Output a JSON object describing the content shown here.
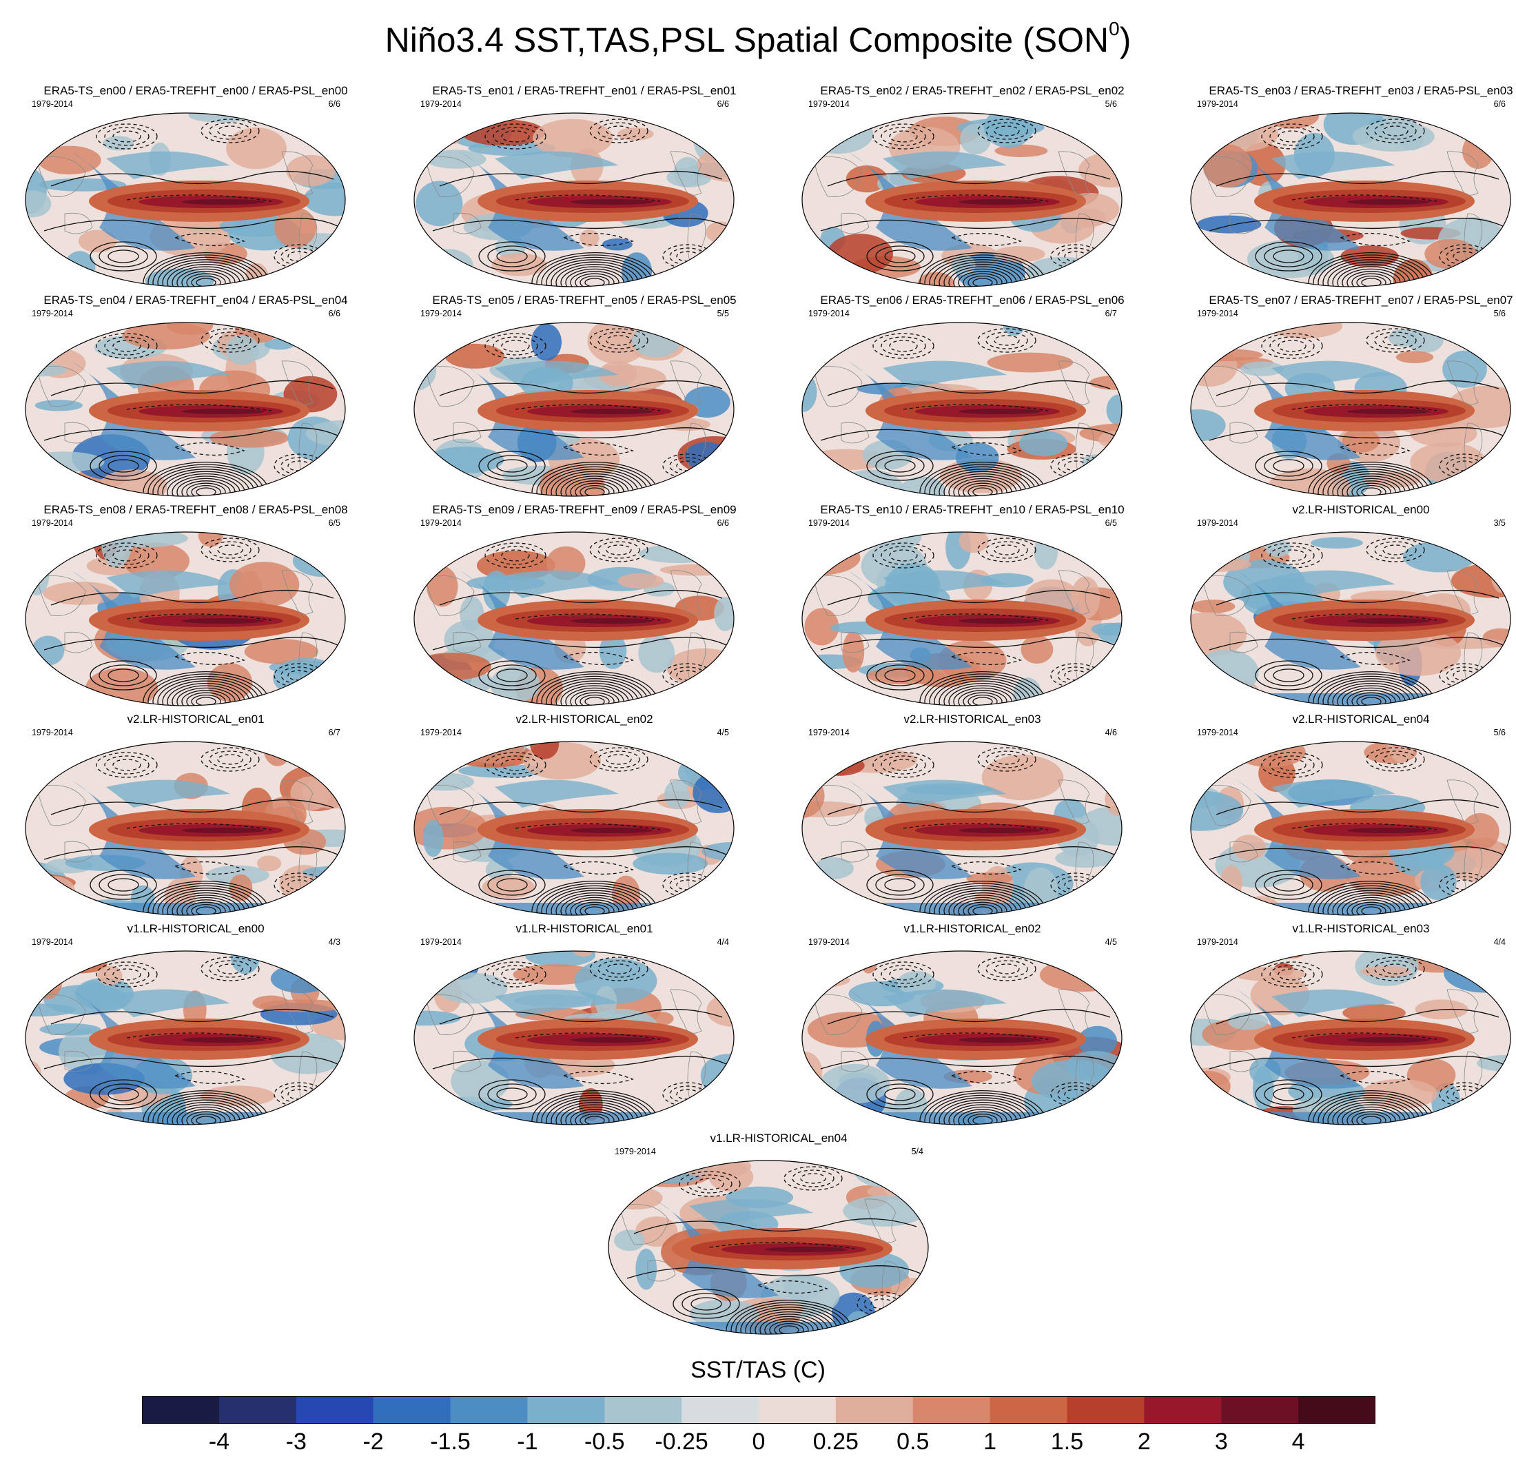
{
  "title": {
    "main": "Niño3.4 SST,TAS,PSL Spatial Composite (SON",
    "sup": "0",
    "close": ")"
  },
  "panels": [
    {
      "title": "ERA5-TS_en00 / ERA5-TREFHT_en00 / ERA5-PSL_en00",
      "years": "1979-2014",
      "count": "6/6",
      "style": "obs"
    },
    {
      "title": "ERA5-TS_en01 / ERA5-TREFHT_en01 / ERA5-PSL_en01",
      "years": "1979-2014",
      "count": "6/6",
      "style": "obs"
    },
    {
      "title": "ERA5-TS_en02 / ERA5-TREFHT_en02 / ERA5-PSL_en02",
      "years": "1979-2014",
      "count": "5/6",
      "style": "obs"
    },
    {
      "title": "ERA5-TS_en03 / ERA5-TREFHT_en03 / ERA5-PSL_en03",
      "years": "1979-2014",
      "count": "6/6",
      "style": "obs"
    },
    {
      "title": "ERA5-TS_en04 / ERA5-TREFHT_en04 / ERA5-PSL_en04",
      "years": "1979-2014",
      "count": "6/6",
      "style": "obs"
    },
    {
      "title": "ERA5-TS_en05 / ERA5-TREFHT_en05 / ERA5-PSL_en05",
      "years": "1979-2014",
      "count": "5/5",
      "style": "obs"
    },
    {
      "title": "ERA5-TS_en06 / ERA5-TREFHT_en06 / ERA5-PSL_en06",
      "years": "1979-2014",
      "count": "6/7",
      "style": "obs"
    },
    {
      "title": "ERA5-TS_en07 / ERA5-TREFHT_en07 / ERA5-PSL_en07",
      "years": "1979-2014",
      "count": "5/6",
      "style": "obs"
    },
    {
      "title": "ERA5-TS_en08 / ERA5-TREFHT_en08 / ERA5-PSL_en08",
      "years": "1979-2014",
      "count": "6/5",
      "style": "obs"
    },
    {
      "title": "ERA5-TS_en09 / ERA5-TREFHT_en09 / ERA5-PSL_en09",
      "years": "1979-2014",
      "count": "6/6",
      "style": "obs"
    },
    {
      "title": "ERA5-TS_en10 / ERA5-TREFHT_en10 / ERA5-PSL_en10",
      "years": "1979-2014",
      "count": "6/5",
      "style": "obs"
    },
    {
      "title": "v2.LR-HISTORICAL_en00",
      "years": "1979-2014",
      "count": "3/5",
      "style": "model"
    },
    {
      "title": "v2.LR-HISTORICAL_en01",
      "years": "1979-2014",
      "count": "6/7",
      "style": "model"
    },
    {
      "title": "v2.LR-HISTORICAL_en02",
      "years": "1979-2014",
      "count": "4/5",
      "style": "model"
    },
    {
      "title": "v2.LR-HISTORICAL_en03",
      "years": "1979-2014",
      "count": "4/6",
      "style": "model"
    },
    {
      "title": "v2.LR-HISTORICAL_en04",
      "years": "1979-2014",
      "count": "5/6",
      "style": "model"
    },
    {
      "title": "v1.LR-HISTORICAL_en00",
      "years": "1979-2014",
      "count": "4/3",
      "style": "model"
    },
    {
      "title": "v1.LR-HISTORICAL_en01",
      "years": "1979-2014",
      "count": "4/4",
      "style": "model"
    },
    {
      "title": "v1.LR-HISTORICAL_en02",
      "years": "1979-2014",
      "count": "4/5",
      "style": "model"
    },
    {
      "title": "v1.LR-HISTORICAL_en03",
      "years": "1979-2014",
      "count": "4/4",
      "style": "model"
    },
    {
      "title": "v1.LR-HISTORICAL_en04",
      "years": "1979-2014",
      "count": "5/4",
      "style": "model"
    }
  ],
  "colorbar": {
    "label": "SST/TAS (C)",
    "colors": [
      "#191b45",
      "#27306e",
      "#2747b3",
      "#2f6fbc",
      "#4c8ec4",
      "#7ab0cc",
      "#a8c4cf",
      "#d7dcdf",
      "#ecdcd8",
      "#e0ae9c",
      "#d7876b",
      "#cd6645",
      "#b7402c",
      "#97182a",
      "#6d0f25",
      "#460b18"
    ],
    "ticks": [
      "-4",
      "-3",
      "-2",
      "-1.5",
      "-1",
      "-0.5",
      "-0.25",
      "0",
      "0.25",
      "0.5",
      "1",
      "1.5",
      "2",
      "3",
      "4"
    ]
  }
}
